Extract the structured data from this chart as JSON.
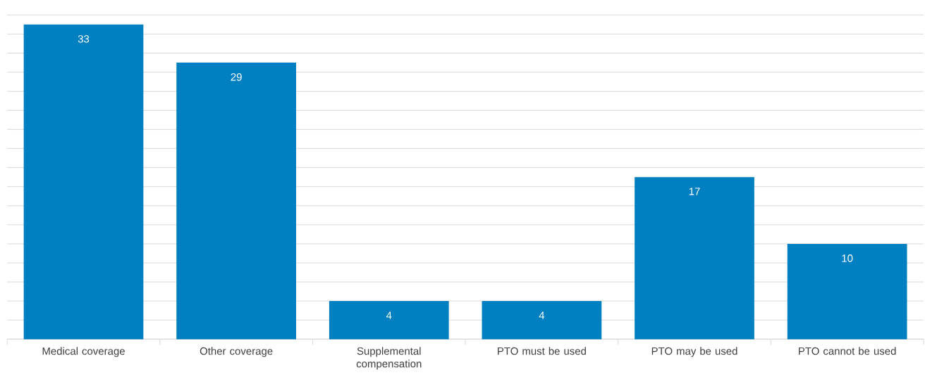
{
  "chart_data": {
    "type": "bar",
    "categories": [
      "Medical coverage",
      "Other coverage",
      "Supplemental compensation",
      "PTO must be used",
      "PTO may be used",
      "PTO cannot be used"
    ],
    "values": [
      33,
      29,
      4,
      4,
      17,
      10
    ],
    "color": "#0080c0",
    "data_labels": true,
    "tick_labels": "x",
    "grid": "y"
  }
}
